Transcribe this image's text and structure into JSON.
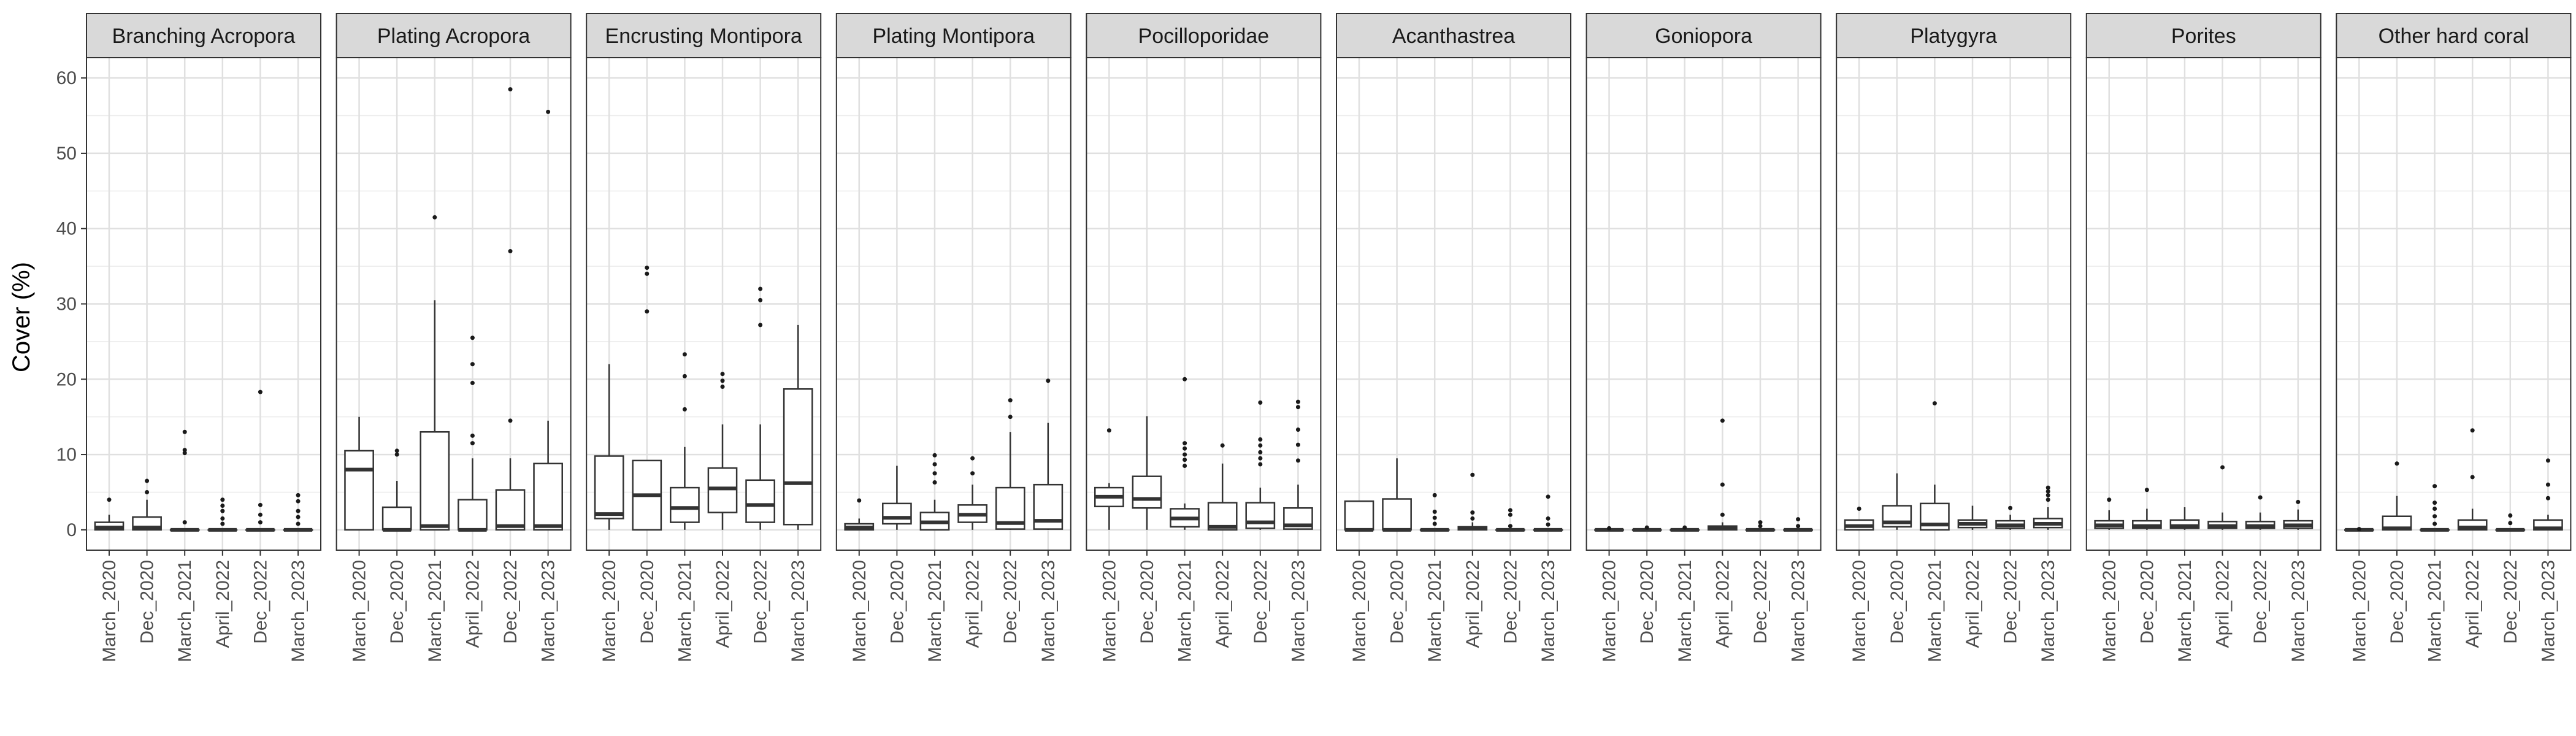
{
  "chart_data": {
    "type": "boxplot",
    "title": "",
    "xlabel": "",
    "ylabel": "Cover (%)",
    "ylim": [
      0,
      60
    ],
    "yticks": [
      0,
      10,
      20,
      30,
      40,
      50,
      60
    ],
    "grid": true,
    "facet_strip_color": "#d9d9d9",
    "categories": [
      "March_2020",
      "Dec_2020",
      "March_2021",
      "April_2022",
      "Dec_2022",
      "March_2023"
    ],
    "panels": [
      {
        "name": "Branching Acropora",
        "boxes": [
          {
            "min": 0,
            "q1": 0,
            "median": 0.3,
            "q3": 1,
            "max": 2,
            "outliers": [
              4
            ]
          },
          {
            "min": 0,
            "q1": 0,
            "median": 0.3,
            "q3": 1.7,
            "max": 4,
            "outliers": [
              5,
              6.5
            ]
          },
          {
            "min": 0,
            "q1": 0,
            "median": 0,
            "q3": 0,
            "max": 0,
            "outliers": [
              1,
              10.2,
              10.6,
              13
            ]
          },
          {
            "min": 0,
            "q1": 0,
            "median": 0,
            "q3": 0,
            "max": 0,
            "outliers": [
              0.8,
              1.5,
              2.5,
              3.2,
              4
            ]
          },
          {
            "min": 0,
            "q1": 0,
            "median": 0,
            "q3": 0,
            "max": 0,
            "outliers": [
              1,
              2,
              3.3,
              18.3
            ]
          },
          {
            "min": 0,
            "q1": 0,
            "median": 0,
            "q3": 0,
            "max": 0,
            "outliers": [
              0.8,
              1.7,
              2.5,
              3.8,
              4.6
            ]
          }
        ]
      },
      {
        "name": "Plating Acropora",
        "boxes": [
          {
            "min": 0,
            "q1": 0,
            "median": 8,
            "q3": 10.5,
            "max": 15,
            "outliers": []
          },
          {
            "min": 0,
            "q1": 0,
            "median": 0,
            "q3": 3,
            "max": 6.5,
            "outliers": [
              10,
              10.5
            ]
          },
          {
            "min": 0,
            "q1": 0,
            "median": 0.5,
            "q3": 13,
            "max": 30.5,
            "outliers": [
              41.5
            ]
          },
          {
            "min": 0,
            "q1": 0,
            "median": 0,
            "q3": 4,
            "max": 9.5,
            "outliers": [
              11.5,
              12.5,
              19.5,
              22,
              25.5
            ]
          },
          {
            "min": 0,
            "q1": 0,
            "median": 0.5,
            "q3": 5.3,
            "max": 9.5,
            "outliers": [
              14.5,
              37,
              58.5
            ]
          },
          {
            "min": 0,
            "q1": 0,
            "median": 0.5,
            "q3": 8.8,
            "max": 14.5,
            "outliers": [
              55.5
            ]
          }
        ]
      },
      {
        "name": "Encrusting Montipora",
        "boxes": [
          {
            "min": 0,
            "q1": 1.5,
            "median": 2.1,
            "q3": 9.8,
            "max": 22,
            "outliers": []
          },
          {
            "min": 0,
            "q1": 0,
            "median": 4.6,
            "q3": 9.2,
            "max": 9.2,
            "outliers": [
              29,
              34,
              34.8
            ]
          },
          {
            "min": 0,
            "q1": 1,
            "median": 2.9,
            "q3": 5.6,
            "max": 11,
            "outliers": [
              16,
              20.4,
              23.3
            ]
          },
          {
            "min": 0,
            "q1": 2.3,
            "median": 5.5,
            "q3": 8.2,
            "max": 14,
            "outliers": [
              19,
              19.8,
              20.7
            ]
          },
          {
            "min": 0,
            "q1": 1,
            "median": 3.3,
            "q3": 6.6,
            "max": 14,
            "outliers": [
              27.2,
              30.5,
              32
            ]
          },
          {
            "min": 0,
            "q1": 0.7,
            "median": 6.2,
            "q3": 18.7,
            "max": 27.2,
            "outliers": []
          }
        ]
      },
      {
        "name": "Plating Montipora",
        "boxes": [
          {
            "min": 0,
            "q1": 0,
            "median": 0.3,
            "q3": 0.8,
            "max": 1.5,
            "outliers": [
              3.9
            ]
          },
          {
            "min": 0,
            "q1": 0.8,
            "median": 1.6,
            "q3": 3.5,
            "max": 8.5,
            "outliers": []
          },
          {
            "min": 0,
            "q1": 0,
            "median": 1,
            "q3": 2.3,
            "max": 4,
            "outliers": [
              6.3,
              7.5,
              8.7,
              9.9
            ]
          },
          {
            "min": 0,
            "q1": 1,
            "median": 2,
            "q3": 3.3,
            "max": 6,
            "outliers": [
              7.5,
              9.5
            ]
          },
          {
            "min": 0,
            "q1": 0.1,
            "median": 0.9,
            "q3": 5.6,
            "max": 13,
            "outliers": [
              15,
              17.2
            ]
          },
          {
            "min": 0,
            "q1": 0.1,
            "median": 1.2,
            "q3": 6,
            "max": 14.2,
            "outliers": [
              19.8
            ]
          }
        ]
      },
      {
        "name": "Pocilloporidae",
        "boxes": [
          {
            "min": 0,
            "q1": 3.1,
            "median": 4.4,
            "q3": 5.6,
            "max": 6.2,
            "outliers": [
              13.2
            ]
          },
          {
            "min": 0,
            "q1": 2.9,
            "median": 4.1,
            "q3": 7.1,
            "max": 15.1,
            "outliers": []
          },
          {
            "min": 0,
            "q1": 0.4,
            "median": 1.5,
            "q3": 2.8,
            "max": 3.5,
            "outliers": [
              8.5,
              9.3,
              10,
              10.8,
              11.5,
              20
            ]
          },
          {
            "min": 0,
            "q1": 0,
            "median": 0.4,
            "q3": 3.6,
            "max": 8.8,
            "outliers": [
              11.2
            ]
          },
          {
            "min": 0,
            "q1": 0.2,
            "median": 1,
            "q3": 3.6,
            "max": 5.6,
            "outliers": [
              8.7,
              9.5,
              10.3,
              11.2,
              12,
              16.9
            ]
          },
          {
            "min": 0,
            "q1": 0.1,
            "median": 0.6,
            "q3": 2.9,
            "max": 6,
            "outliers": [
              9.2,
              11.3,
              13.3,
              16.3,
              17
            ]
          }
        ]
      },
      {
        "name": "Acanthastrea",
        "boxes": [
          {
            "min": 0,
            "q1": 0,
            "median": 0,
            "q3": 3.8,
            "max": 3.8,
            "outliers": []
          },
          {
            "min": 0,
            "q1": 0,
            "median": 0,
            "q3": 4.1,
            "max": 9.5,
            "outliers": []
          },
          {
            "min": 0,
            "q1": 0,
            "median": 0,
            "q3": 0,
            "max": 0,
            "outliers": [
              0.8,
              1.6,
              2.4,
              4.6
            ]
          },
          {
            "min": 0,
            "q1": 0,
            "median": 0.2,
            "q3": 0.4,
            "max": 1,
            "outliers": [
              1.5,
              2.3,
              7.3
            ]
          },
          {
            "min": 0,
            "q1": 0,
            "median": 0,
            "q3": 0,
            "max": 0,
            "outliers": [
              0.5,
              2,
              2.6
            ]
          },
          {
            "min": 0,
            "q1": 0,
            "median": 0,
            "q3": 0,
            "max": 0,
            "outliers": [
              0.7,
              1.5,
              4.4
            ]
          }
        ]
      },
      {
        "name": "Goniopora",
        "boxes": [
          {
            "min": 0,
            "q1": 0,
            "median": 0,
            "q3": 0,
            "max": 0,
            "outliers": [
              0.2
            ]
          },
          {
            "min": 0,
            "q1": 0,
            "median": 0,
            "q3": 0,
            "max": 0,
            "outliers": [
              0.3
            ]
          },
          {
            "min": 0,
            "q1": 0,
            "median": 0,
            "q3": 0,
            "max": 0,
            "outliers": [
              0.3
            ]
          },
          {
            "min": 0,
            "q1": 0,
            "median": 0.2,
            "q3": 0.5,
            "max": 1,
            "outliers": [
              2,
              6,
              14.5
            ]
          },
          {
            "min": 0,
            "q1": 0,
            "median": 0,
            "q3": 0,
            "max": 0,
            "outliers": [
              0.5,
              1
            ]
          },
          {
            "min": 0,
            "q1": 0,
            "median": 0,
            "q3": 0,
            "max": 0,
            "outliers": [
              0.5,
              1.4
            ]
          }
        ]
      },
      {
        "name": "Platygyra",
        "boxes": [
          {
            "min": 0,
            "q1": 0,
            "median": 0.5,
            "q3": 1.3,
            "max": 1.3,
            "outliers": [
              2.8
            ]
          },
          {
            "min": 0,
            "q1": 0.4,
            "median": 1,
            "q3": 3.2,
            "max": 7.5,
            "outliers": []
          },
          {
            "min": 0,
            "q1": 0,
            "median": 0.7,
            "q3": 3.5,
            "max": 6,
            "outliers": [
              16.8
            ]
          },
          {
            "min": 0,
            "q1": 0.3,
            "median": 0.8,
            "q3": 1.3,
            "max": 3.2,
            "outliers": []
          },
          {
            "min": 0,
            "q1": 0.2,
            "median": 0.6,
            "q3": 1.2,
            "max": 2,
            "outliers": [
              2.9
            ]
          },
          {
            "min": 0,
            "q1": 0.3,
            "median": 0.8,
            "q3": 1.5,
            "max": 3,
            "outliers": [
              4,
              4.6,
              5.1,
              5.6
            ]
          }
        ]
      },
      {
        "name": "Porites",
        "boxes": [
          {
            "min": 0,
            "q1": 0.2,
            "median": 0.6,
            "q3": 1.2,
            "max": 2.6,
            "outliers": [
              4
            ]
          },
          {
            "min": 0,
            "q1": 0.2,
            "median": 0.5,
            "q3": 1.2,
            "max": 2.8,
            "outliers": [
              5.3
            ]
          },
          {
            "min": 0,
            "q1": 0.2,
            "median": 0.5,
            "q3": 1.3,
            "max": 3,
            "outliers": []
          },
          {
            "min": 0,
            "q1": 0.2,
            "median": 0.5,
            "q3": 1.1,
            "max": 2.3,
            "outliers": [
              8.3
            ]
          },
          {
            "min": 0,
            "q1": 0.2,
            "median": 0.5,
            "q3": 1.1,
            "max": 2.3,
            "outliers": [
              4.3
            ]
          },
          {
            "min": 0,
            "q1": 0.2,
            "median": 0.6,
            "q3": 1.2,
            "max": 2.7,
            "outliers": [
              3.7
            ]
          }
        ]
      },
      {
        "name": "Other hard coral",
        "boxes": [
          {
            "min": 0,
            "q1": 0,
            "median": 0,
            "q3": 0,
            "max": 0,
            "outliers": [
              0.1
            ]
          },
          {
            "min": 0,
            "q1": 0,
            "median": 0.2,
            "q3": 1.8,
            "max": 4.5,
            "outliers": [
              8.8
            ]
          },
          {
            "min": 0,
            "q1": 0,
            "median": 0,
            "q3": 0,
            "max": 0,
            "outliers": [
              0.8,
              1.8,
              2.8,
              3.6,
              5.8
            ]
          },
          {
            "min": 0,
            "q1": 0,
            "median": 0.3,
            "q3": 1.3,
            "max": 2.8,
            "outliers": [
              7,
              13.2
            ]
          },
          {
            "min": 0,
            "q1": 0,
            "median": 0,
            "q3": 0,
            "max": 0,
            "outliers": [
              0.9,
              1.9
            ]
          },
          {
            "min": 0,
            "q1": 0,
            "median": 0.2,
            "q3": 1.3,
            "max": 2,
            "outliers": [
              4.2,
              6,
              9.2
            ]
          }
        ]
      }
    ]
  }
}
